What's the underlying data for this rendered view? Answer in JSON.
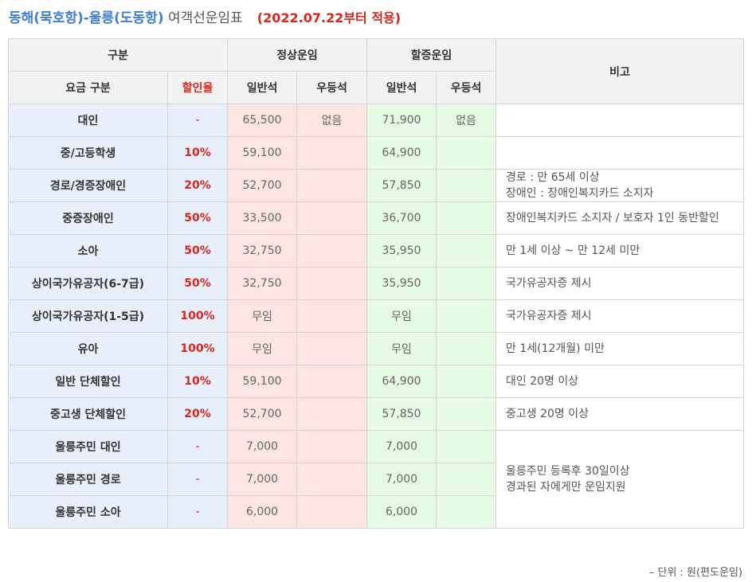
{
  "title": {
    "route": "동해(묵호항)-울릉(도동항)",
    "rest": " 여객선운임표",
    "date": "(2022.07.22부터 적용)"
  },
  "header": {
    "category": "구분",
    "normal_fare": "정상운임",
    "surge_fare": "할증운임",
    "remarks": "비고",
    "fare_type": "요금 구분",
    "discount_rate": "할인율",
    "normal_general": "일반석",
    "normal_premium": "우등석",
    "surge_general": "일반석",
    "surge_premium": "우등석"
  },
  "rows": [
    {
      "category": "대인",
      "rate": "-",
      "normal_general": "65,500",
      "normal_premium": "없음",
      "surge_general": "71,900",
      "surge_premium": "없음",
      "note": ""
    },
    {
      "category": "중/고등학생",
      "rate": "10%",
      "normal_general": "59,100",
      "normal_premium": "",
      "surge_general": "64,900",
      "surge_premium": "",
      "note": ""
    },
    {
      "category": "경로/경증장애인",
      "rate": "20%",
      "normal_general": "52,700",
      "normal_premium": "",
      "surge_general": "57,850",
      "surge_premium": "",
      "note": "경로 : 만 65세 이상\n장애인 : 장애인복지카드 소지자"
    },
    {
      "category": "중증장애인",
      "rate": "50%",
      "normal_general": "33,500",
      "normal_premium": "",
      "surge_general": "36,700",
      "surge_premium": "",
      "note": "장애인복지카드 소지자 / 보호자 1인 동반할인"
    },
    {
      "category": "소아",
      "rate": "50%",
      "normal_general": "32,750",
      "normal_premium": "",
      "surge_general": "35,950",
      "surge_premium": "",
      "note": "만 1세 이상 ~ 만 12세 미만"
    },
    {
      "category": "상이국가유공자(6-7급)",
      "rate": "50%",
      "normal_general": "32,750",
      "normal_premium": "",
      "surge_general": "35,950",
      "surge_premium": "",
      "note": "국가유공자증 제시"
    },
    {
      "category": "상이국가유공자(1-5급)",
      "rate": "100%",
      "normal_general": "무임",
      "normal_premium": "",
      "surge_general": "무임",
      "surge_premium": "",
      "note": "국가유공자증 제시"
    },
    {
      "category": "유아",
      "rate": "100%",
      "normal_general": "무임",
      "normal_premium": "",
      "surge_general": "무임",
      "surge_premium": "",
      "note": "만 1세(12개월) 미만"
    },
    {
      "category": "일반 단체할인",
      "rate": "10%",
      "normal_general": "59,100",
      "normal_premium": "",
      "surge_general": "64,900",
      "surge_premium": "",
      "note": "대인 20명 이상"
    },
    {
      "category": "중고생 단체할인",
      "rate": "20%",
      "normal_general": "52,700",
      "normal_premium": "",
      "surge_general": "57,850",
      "surge_premium": "",
      "note": "중고생 20명 이상"
    },
    {
      "category": "울릉주민 대인",
      "rate": "-",
      "normal_general": "7,000",
      "normal_premium": "",
      "surge_general": "7,000",
      "surge_premium": "",
      "note": "울릉주민 등록후 30일이상\n경과된 자에게만 운임지원"
    },
    {
      "category": "울릉주민 경로",
      "rate": "-",
      "normal_general": "7,000",
      "normal_premium": "",
      "surge_general": "7,000",
      "surge_premium": ""
    },
    {
      "category": "울릉주민 소아",
      "rate": "-",
      "normal_general": "6,000",
      "normal_premium": "",
      "surge_general": "6,000",
      "surge_premium": ""
    }
  ],
  "footer": "– 단위 : 원(편도운임)"
}
